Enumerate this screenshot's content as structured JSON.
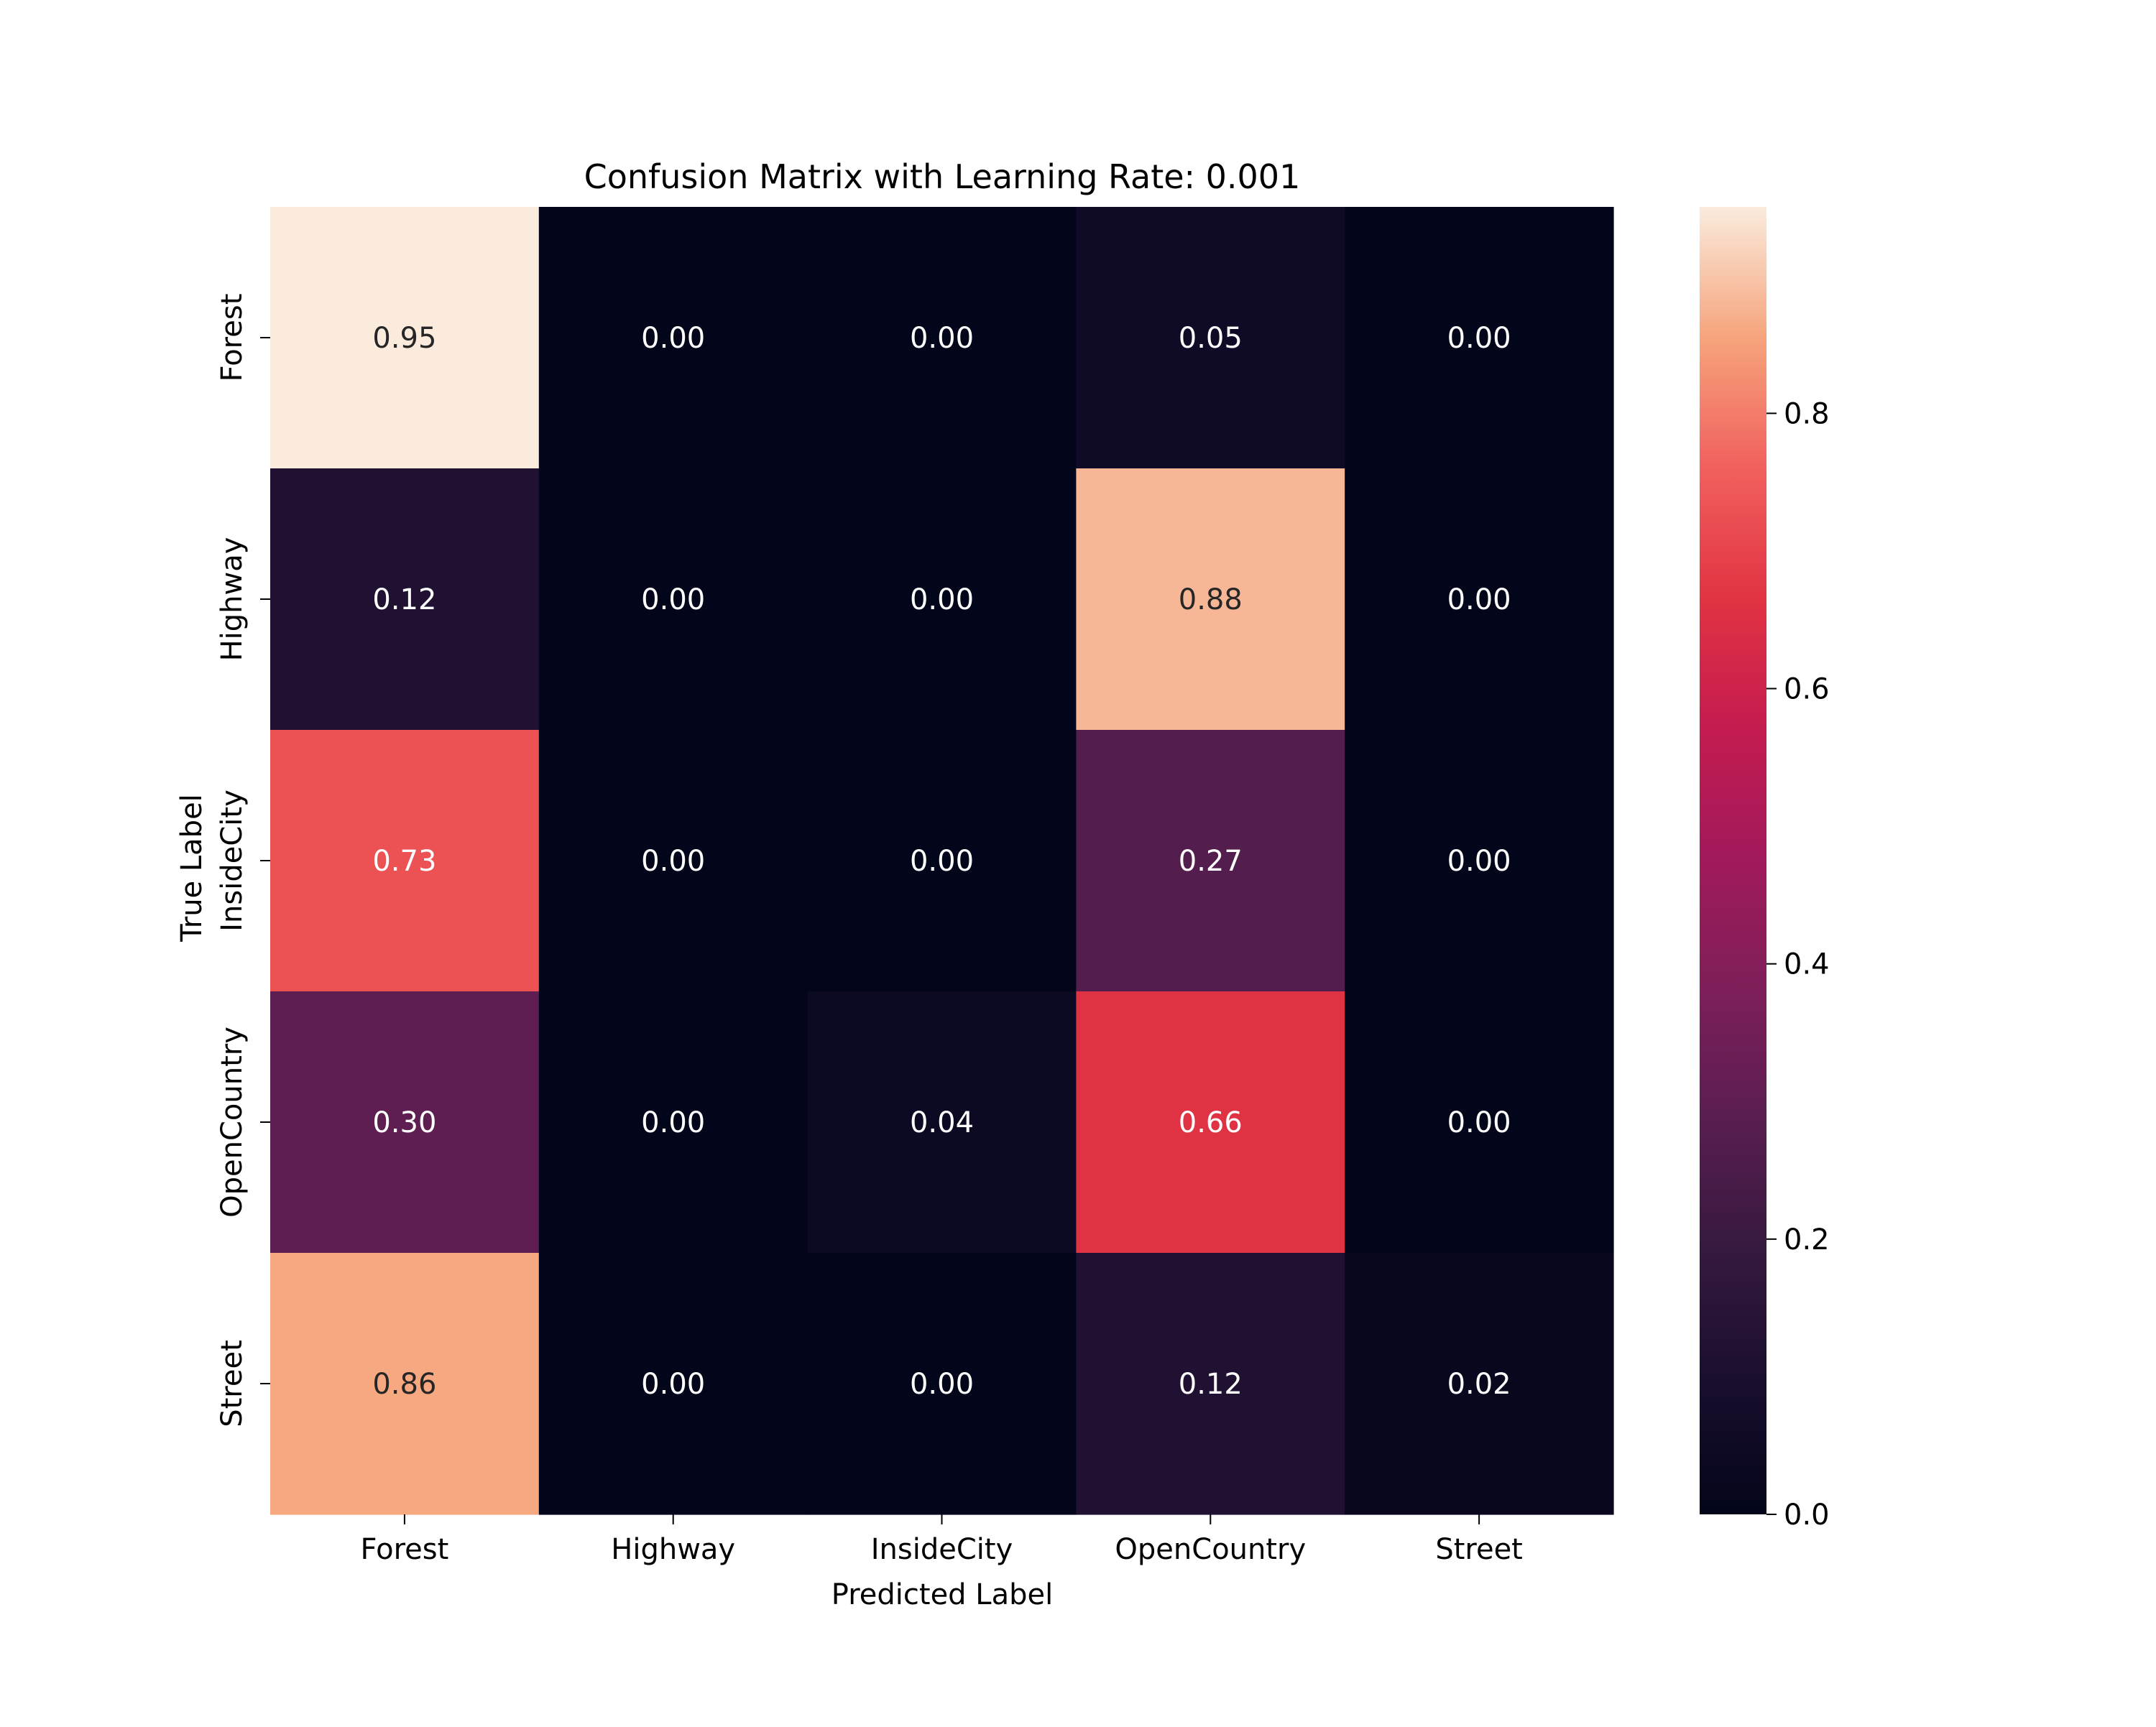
{
  "chart_data": {
    "type": "heatmap",
    "title": "Confusion Matrix with Learning Rate: 0.001",
    "xlabel": "Predicted Label",
    "ylabel": "True Label",
    "x_categories": [
      "Forest",
      "Highway",
      "InsideCity",
      "OpenCountry",
      "Street"
    ],
    "y_categories": [
      "Forest",
      "Highway",
      "InsideCity",
      "OpenCountry",
      "Street"
    ],
    "values": [
      [
        0.95,
        0.0,
        0.0,
        0.05,
        0.0
      ],
      [
        0.12,
        0.0,
        0.0,
        0.88,
        0.0
      ],
      [
        0.73,
        0.0,
        0.0,
        0.27,
        0.0
      ],
      [
        0.3,
        0.0,
        0.04,
        0.66,
        0.0
      ],
      [
        0.86,
        0.0,
        0.0,
        0.12,
        0.02
      ]
    ],
    "value_format": "0.00",
    "colorbar": {
      "range": [
        0.0,
        0.95
      ],
      "ticks": [
        0.0,
        0.2,
        0.4,
        0.6,
        0.8
      ],
      "tick_labels": [
        "0.0",
        "0.2",
        "0.4",
        "0.6",
        "0.8"
      ]
    },
    "colormap": "rocket",
    "colormap_stops": [
      [
        0.0,
        "#03051a"
      ],
      [
        0.1,
        "#190e2e"
      ],
      [
        0.2,
        "#35193e"
      ],
      [
        0.3,
        "#591e50"
      ],
      [
        0.4,
        "#7d1f5a"
      ],
      [
        0.5,
        "#a11a5b"
      ],
      [
        0.6,
        "#c41b50"
      ],
      [
        0.7,
        "#e13342"
      ],
      [
        0.8,
        "#f1605d"
      ],
      [
        0.9,
        "#f6a47c"
      ],
      [
        1.0,
        "#faebdd"
      ]
    ],
    "text_colors": {
      "on_dark": "#ffffff",
      "on_light": "#262626"
    },
    "grid": false
  }
}
